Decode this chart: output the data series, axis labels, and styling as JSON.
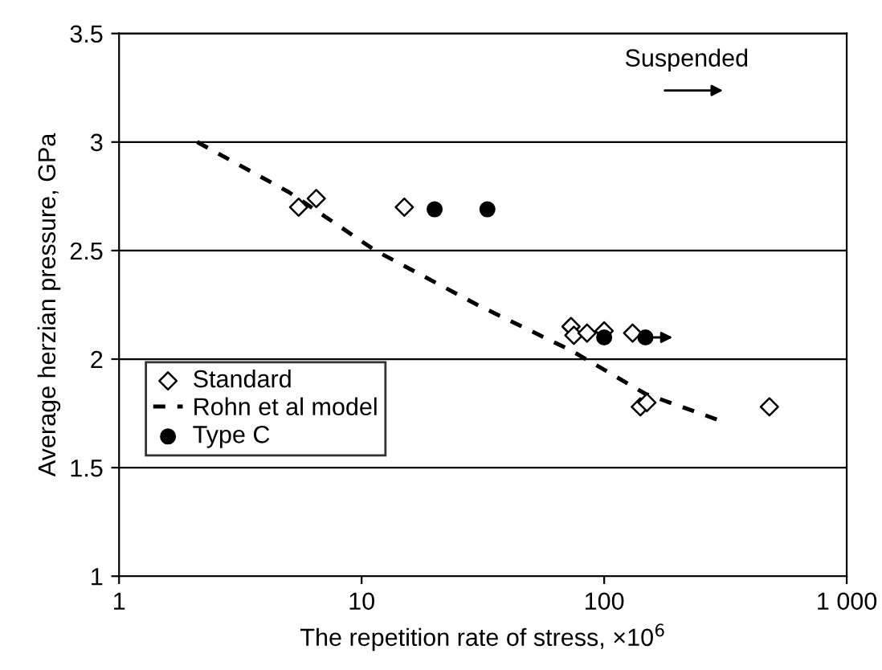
{
  "chart_data": {
    "type": "scatter",
    "xlabel": "The repetition rate of stress, ×10$^{6}$",
    "ylabel": "Average herzian pressure, GPa",
    "log": "x",
    "xlim": [
      1,
      1000
    ],
    "xticks": [
      1,
      10,
      100,
      {
        "value": 1000,
        "label": "1 000"
      }
    ],
    "ylim": [
      1,
      3.5
    ],
    "yticks": [
      1,
      1.5,
      2,
      2.5,
      3,
      3.5
    ],
    "grid": "y",
    "legend": "bottom left",
    "annotations": [
      "Suspended"
    ],
    "series": [
      {
        "name": "Standard",
        "marker": "diamond",
        "color": "#000000",
        "x": [
          5.5,
          6.5,
          15,
          73,
          75,
          85,
          100,
          131,
          141,
          150,
          480
        ],
        "values": [
          2.7,
          2.74,
          2.7,
          2.15,
          2.11,
          2.12,
          2.13,
          2.12,
          1.78,
          1.8,
          1.78
        ]
      },
      {
        "name": "Rohn et al model",
        "type": "line",
        "line_style": "dashed",
        "marker": "none",
        "color": "#000000",
        "x": [
          2.1,
          5,
          11.4,
          30,
          73,
          148,
          295
        ],
        "values": [
          3.0,
          2.77,
          2.5,
          2.25,
          2.04,
          1.84,
          1.72
        ]
      },
      {
        "name": "Type C",
        "marker": "circle",
        "color": "#000000",
        "x": [
          20,
          33,
          100,
          148
        ],
        "values": [
          2.69,
          2.69,
          2.1,
          2.1
        ]
      }
    ]
  }
}
